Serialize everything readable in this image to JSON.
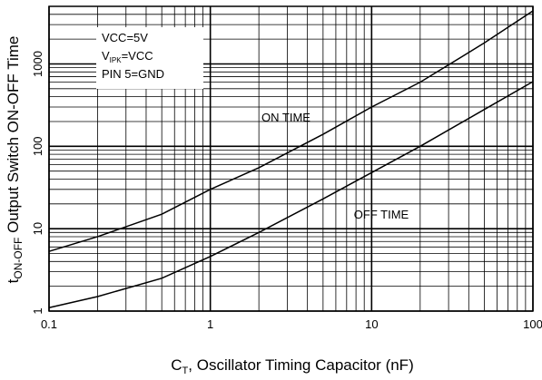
{
  "chart_data": {
    "type": "line",
    "x_label": {
      "main": "C",
      "sub": "T",
      "rest": ", Oscillator Timing Capacitor (nF)"
    },
    "y_label": {
      "main": "t",
      "sub": "ON-OFF",
      "rest": " Output Switch ON-OFF Time"
    },
    "annotation": {
      "line1": "VCC=5V",
      "line2_main": "V",
      "line2_sub": "IPK",
      "line2_rest": "=VCC",
      "line3": "PIN 5=GND"
    },
    "x": [
      0.1,
      0.2,
      0.5,
      1,
      2,
      5,
      10,
      20,
      50,
      100
    ],
    "series": [
      {
        "name": "ON TIME",
        "color": "#000000",
        "values": [
          5.3,
          8,
          15,
          30,
          55,
          140,
          300,
          600,
          1800,
          4400
        ]
      },
      {
        "name": "OFF TIME",
        "color": "#000000",
        "values": [
          1.1,
          1.5,
          2.5,
          4.6,
          9,
          23,
          48,
          100,
          280,
          610
        ]
      }
    ],
    "xlim": [
      0.1,
      100
    ],
    "ylim": [
      1,
      5000
    ],
    "xticks": [
      0.1,
      1,
      10,
      100
    ],
    "yticks": [
      1,
      10,
      100,
      1000
    ],
    "xscale": "log",
    "yscale": "log",
    "grid": true
  }
}
